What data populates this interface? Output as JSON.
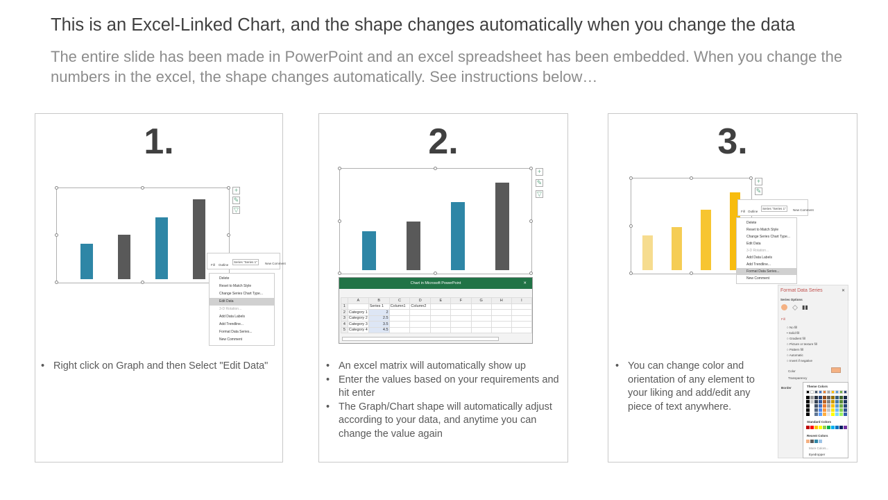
{
  "header": {
    "title": "This is an Excel-Linked Chart, and the shape changes automatically when you change the data",
    "subtitle": "The entire slide has been made in PowerPoint and an excel spreadsheet has been embedded. When you change the numbers in the excel, the shape changes automatically. See instructions below…"
  },
  "steps": [
    {
      "number": "1.",
      "bullets": [
        "Right click on Graph and then Select \"Edit Data\""
      ]
    },
    {
      "number": "2.",
      "bullets": [
        "An excel matrix will automatically show up",
        "Enter the values based on your requirements and hit enter",
        "The Graph/Chart shape will automatically adjust according to your data, and anytime you can change the value again"
      ]
    },
    {
      "number": "3.",
      "bullets": [
        "You can change color and orientation of any element to your liking and add/edit any piece of text anywhere."
      ]
    }
  ],
  "chart_values": [
    2,
    2.5,
    3.5,
    4.5
  ],
  "colors": {
    "teal": "#2e86a6",
    "gray": "#595959",
    "gold": [
      "#f6dc8f",
      "#f5cd55",
      "#f7c531",
      "#f7bc0f"
    ]
  },
  "ribbon": {
    "fill": "Fill",
    "outline": "Outline",
    "series_select": "Series \"Series 1\"",
    "new_comment": "New Comment"
  },
  "context_menu": [
    "Delete",
    "Reset to Match Style",
    "Change Series Chart Type...",
    "Edit Data",
    "3-D Rotation...",
    "Add Data Labels",
    "Add Trendline...",
    "Format Data Series...",
    "New Comment"
  ],
  "excel": {
    "title": "Chart in Microsoft PowerPoint",
    "columns": [
      "",
      "A",
      "B",
      "C",
      "D",
      "E",
      "F",
      "G",
      "H",
      "I"
    ],
    "rows": [
      [
        "1",
        "",
        "Series 1",
        "Column1",
        "Column2",
        "",
        "",
        "",
        "",
        ""
      ],
      [
        "2",
        "Category 1",
        "2",
        "",
        "",
        "",
        "",
        "",
        "",
        ""
      ],
      [
        "3",
        "Category 2",
        "2.5",
        "",
        "",
        "",
        "",
        "",
        "",
        ""
      ],
      [
        "4",
        "Category 3",
        "3.5",
        "",
        "",
        "",
        "",
        "",
        "",
        ""
      ],
      [
        "5",
        "Category 4",
        "4.5",
        "",
        "",
        "",
        "",
        "",
        "",
        ""
      ]
    ]
  },
  "format_pane": {
    "title": "Format Data Series",
    "series_options": "Series Options",
    "fill": "Fill",
    "fill_options": [
      "No fill",
      "Solid fill",
      "Gradient fill",
      "Picture or texture fill",
      "Pattern fill",
      "Automatic",
      "Invert if negative"
    ],
    "color_label": "Color",
    "transparency_label": "Transparency",
    "border": "Border",
    "palette": {
      "theme": "Theme Colors",
      "standard": "Standard Colors",
      "recent": "Recent Colors",
      "more": "More Colors...",
      "eyedropper": "Eyedropper",
      "theme_colors": [
        "#000000",
        "#ffffff",
        "#44546a",
        "#4472c4",
        "#ed7d31",
        "#a5a5a5",
        "#ffc000",
        "#5b9bd5",
        "#70ad47",
        "#264478"
      ],
      "standard_colors": [
        "#c00000",
        "#ff0000",
        "#ffc000",
        "#ffff00",
        "#92d050",
        "#00b050",
        "#00b0f0",
        "#0070c0",
        "#002060",
        "#7030a0"
      ],
      "recent_colors": [
        "#f4b183",
        "#595959",
        "#2e86a6",
        "#9dc3e6"
      ]
    }
  }
}
